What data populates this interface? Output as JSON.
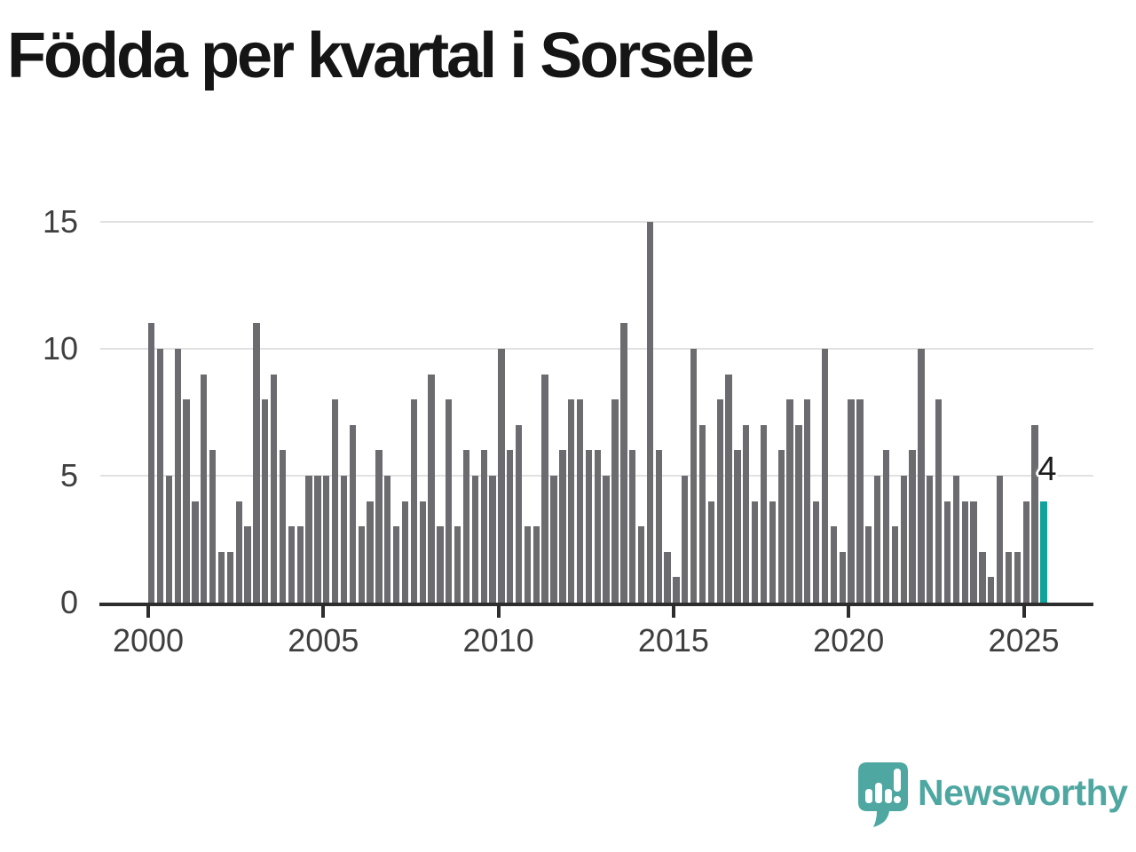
{
  "title": "Födda per kvartal i Sorsele",
  "chart_data": {
    "type": "bar",
    "title": "Födda per kvartal i Sorsele",
    "categories": [
      "2000 Q1",
      "2000 Q2",
      "2000 Q3",
      "2000 Q4",
      "2001 Q1",
      "2001 Q2",
      "2001 Q3",
      "2001 Q4",
      "2002 Q1",
      "2002 Q2",
      "2002 Q3",
      "2002 Q4",
      "2003 Q1",
      "2003 Q2",
      "2003 Q3",
      "2003 Q4",
      "2004 Q1",
      "2004 Q2",
      "2004 Q3",
      "2004 Q4",
      "2005 Q1",
      "2005 Q2",
      "2005 Q3",
      "2005 Q4",
      "2006 Q1",
      "2006 Q2",
      "2006 Q3",
      "2006 Q4",
      "2007 Q1",
      "2007 Q2",
      "2007 Q3",
      "2007 Q4",
      "2008 Q1",
      "2008 Q2",
      "2008 Q3",
      "2008 Q4",
      "2009 Q1",
      "2009 Q2",
      "2009 Q3",
      "2009 Q4",
      "2010 Q1",
      "2010 Q2",
      "2010 Q3",
      "2010 Q4",
      "2011 Q1",
      "2011 Q2",
      "2011 Q3",
      "2011 Q4",
      "2012 Q1",
      "2012 Q2",
      "2012 Q3",
      "2012 Q4",
      "2013 Q1",
      "2013 Q2",
      "2013 Q3",
      "2013 Q4",
      "2014 Q1",
      "2014 Q2",
      "2014 Q3",
      "2014 Q4",
      "2015 Q1",
      "2015 Q2",
      "2015 Q3",
      "2015 Q4",
      "2016 Q1",
      "2016 Q2",
      "2016 Q3",
      "2016 Q4",
      "2017 Q1",
      "2017 Q2",
      "2017 Q3",
      "2017 Q4",
      "2018 Q1",
      "2018 Q2",
      "2018 Q3",
      "2018 Q4",
      "2019 Q1",
      "2019 Q2",
      "2019 Q3",
      "2019 Q4",
      "2020 Q1",
      "2020 Q2",
      "2020 Q3",
      "2020 Q4",
      "2021 Q1",
      "2021 Q2",
      "2021 Q3",
      "2021 Q4",
      "2022 Q1",
      "2022 Q2",
      "2022 Q3",
      "2022 Q4",
      "2023 Q1",
      "2023 Q2",
      "2023 Q3",
      "2023 Q4",
      "2024 Q1",
      "2024 Q2",
      "2024 Q3",
      "2024 Q4",
      "2025 Q1",
      "2025 Q2",
      "2025 Q3"
    ],
    "values": [
      11,
      10,
      5,
      10,
      8,
      4,
      9,
      6,
      2,
      2,
      4,
      3,
      11,
      8,
      9,
      6,
      3,
      3,
      5,
      5,
      5,
      8,
      5,
      7,
      3,
      4,
      6,
      5,
      3,
      4,
      8,
      4,
      9,
      3,
      8,
      3,
      6,
      5,
      6,
      5,
      10,
      6,
      7,
      3,
      3,
      9,
      5,
      6,
      8,
      8,
      6,
      6,
      5,
      8,
      11,
      6,
      3,
      15,
      6,
      2,
      1,
      5,
      10,
      7,
      4,
      8,
      9,
      6,
      7,
      4,
      7,
      4,
      6,
      8,
      7,
      8,
      4,
      10,
      3,
      2,
      8,
      8,
      3,
      5,
      6,
      3,
      5,
      6,
      10,
      5,
      8,
      4,
      5,
      4,
      4,
      2,
      1,
      5,
      2,
      2,
      4,
      7,
      4
    ],
    "y_ticks": [
      0,
      5,
      10,
      15
    ],
    "x_ticks": [
      "2000",
      "2005",
      "2010",
      "2015",
      "2020",
      "2025"
    ],
    "ylim": [
      0,
      15
    ],
    "grid": "horizontal",
    "bar_color": "#6b6b70",
    "highlight": {
      "category": "2025 Q3",
      "value": 4,
      "label": "4",
      "color": "#11a29b"
    }
  },
  "footer": {
    "brand": "Newsworthy",
    "brand_color": "#4ea7a1"
  }
}
